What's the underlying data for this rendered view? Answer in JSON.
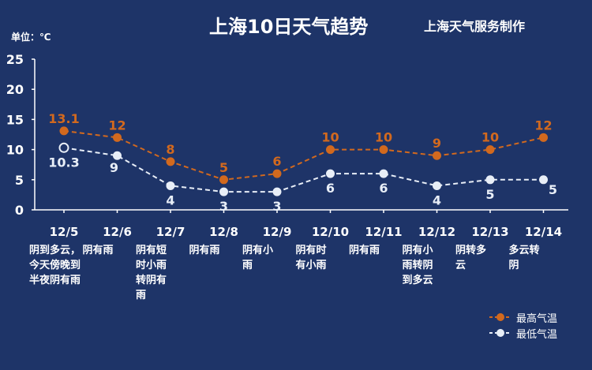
{
  "header": {
    "title": "上海10日天气趋势",
    "source": "上海天气服务制作",
    "unit": "单位：℃"
  },
  "colors": {
    "background": "#1e3468",
    "high": "#d2691e",
    "low": "#e8eef7",
    "axis": "#ffffff"
  },
  "days": [
    {
      "date": "12/5",
      "weather": "阴到多云，\n今天傍晚到\n半夜阴有雨"
    },
    {
      "date": "12/6",
      "weather": "阴有雨"
    },
    {
      "date": "12/7",
      "weather": "阴有短\n时小雨\n转阴有\n雨"
    },
    {
      "date": "12/8",
      "weather": "阴有雨"
    },
    {
      "date": "12/9",
      "weather": "阴有小\n雨"
    },
    {
      "date": "12/10",
      "weather": "阴有时\n有小雨"
    },
    {
      "date": "12/11",
      "weather": "阴有雨"
    },
    {
      "date": "12/12",
      "weather": "阴有小\n雨转阴\n到多云"
    },
    {
      "date": "12/13",
      "weather": "阴转多\n云"
    },
    {
      "date": "12/14",
      "weather": "多云转\n阴"
    }
  ],
  "chart_data": {
    "type": "line",
    "x": [
      "12/5",
      "12/6",
      "12/7",
      "12/8",
      "12/9",
      "12/10",
      "12/11",
      "12/12",
      "12/13",
      "12/14"
    ],
    "ylim": [
      0,
      25
    ],
    "yticks": [
      0,
      5,
      10,
      15,
      20,
      25
    ],
    "grid": false,
    "legend": "bottom-right",
    "series": [
      {
        "name": "最高气温",
        "values": [
          13.1,
          12,
          8,
          5,
          6,
          10,
          10,
          9,
          10,
          12
        ],
        "labels": [
          "13.1",
          "12",
          "8",
          "5",
          "6",
          "10",
          "10",
          "9",
          "10",
          "12"
        ],
        "color": "#d2691e"
      },
      {
        "name": "最低气温",
        "values": [
          10.3,
          9,
          4,
          3,
          3,
          6,
          6,
          4,
          5,
          5
        ],
        "labels": [
          "10.3",
          "9",
          "4",
          "3",
          "3",
          "6",
          "6",
          "4",
          "5",
          "5"
        ],
        "color": "#e8eef7"
      }
    ]
  }
}
